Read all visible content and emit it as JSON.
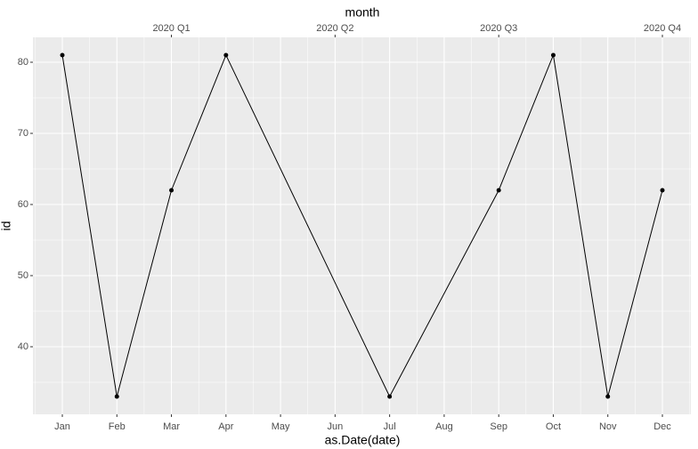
{
  "chart_data": {
    "type": "line",
    "xlabel": "as.Date(date)",
    "ylabel": "id",
    "x2label": "month",
    "categories": [
      "Jan",
      "Feb",
      "Mar",
      "Apr",
      "May",
      "Jun",
      "Jul",
      "Aug",
      "Sep",
      "Oct",
      "Nov",
      "Dec"
    ],
    "x": [
      "Jan",
      "Feb",
      "Mar",
      "Apr",
      "Jul",
      "Sep",
      "Oct",
      "Nov",
      "Dec"
    ],
    "series": [
      {
        "color": "#000000",
        "values": [
          81,
          33,
          62,
          81,
          33,
          62,
          81,
          33,
          62
        ]
      }
    ],
    "x2ticks": [
      {
        "value": "Mar",
        "label": "2020 Q1"
      },
      {
        "value": "Jun",
        "label": "2020 Q2"
      },
      {
        "value": "Sep",
        "label": "2020 Q3"
      },
      {
        "value": "Dec",
        "label": "2020 Q4"
      }
    ],
    "ylim": [
      30.5,
      83.5
    ],
    "yticks": [
      40,
      50,
      60,
      70,
      80
    ],
    "grid": true
  }
}
